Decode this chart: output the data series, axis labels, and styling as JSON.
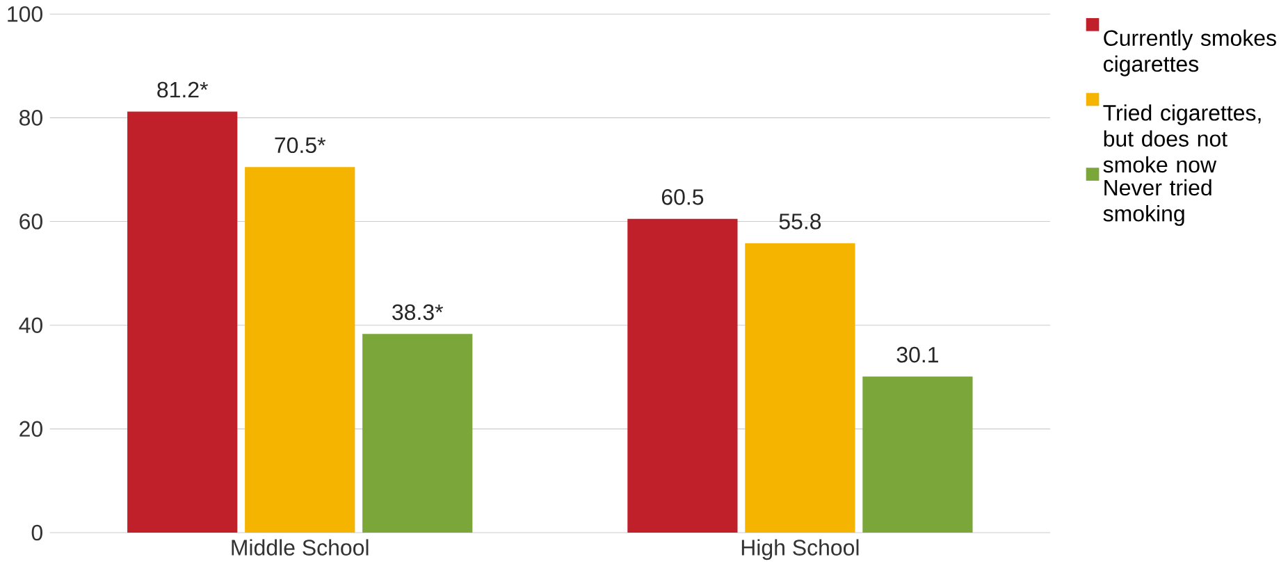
{
  "chart_data": {
    "type": "bar",
    "categories": [
      "Middle School",
      "High School"
    ],
    "series": [
      {
        "name": "Currently smokes cigarettes",
        "color": "#c0202a",
        "values": [
          81.2,
          60.5
        ],
        "value_labels": [
          "81.2*",
          "60.5"
        ]
      },
      {
        "name": "Tried cigarettes, but does not smoke now",
        "color": "#f5b400",
        "values": [
          70.5,
          55.8
        ],
        "value_labels": [
          "70.5*",
          "55.8"
        ]
      },
      {
        "name": "Never tried smoking",
        "color": "#7aa63a",
        "values": [
          38.3,
          30.1
        ],
        "value_labels": [
          "38.3*",
          "30.1"
        ]
      }
    ],
    "ylim": [
      0,
      100
    ],
    "yticks": [
      0,
      20,
      40,
      60,
      80,
      100
    ],
    "grid": "y",
    "legend": "right"
  }
}
